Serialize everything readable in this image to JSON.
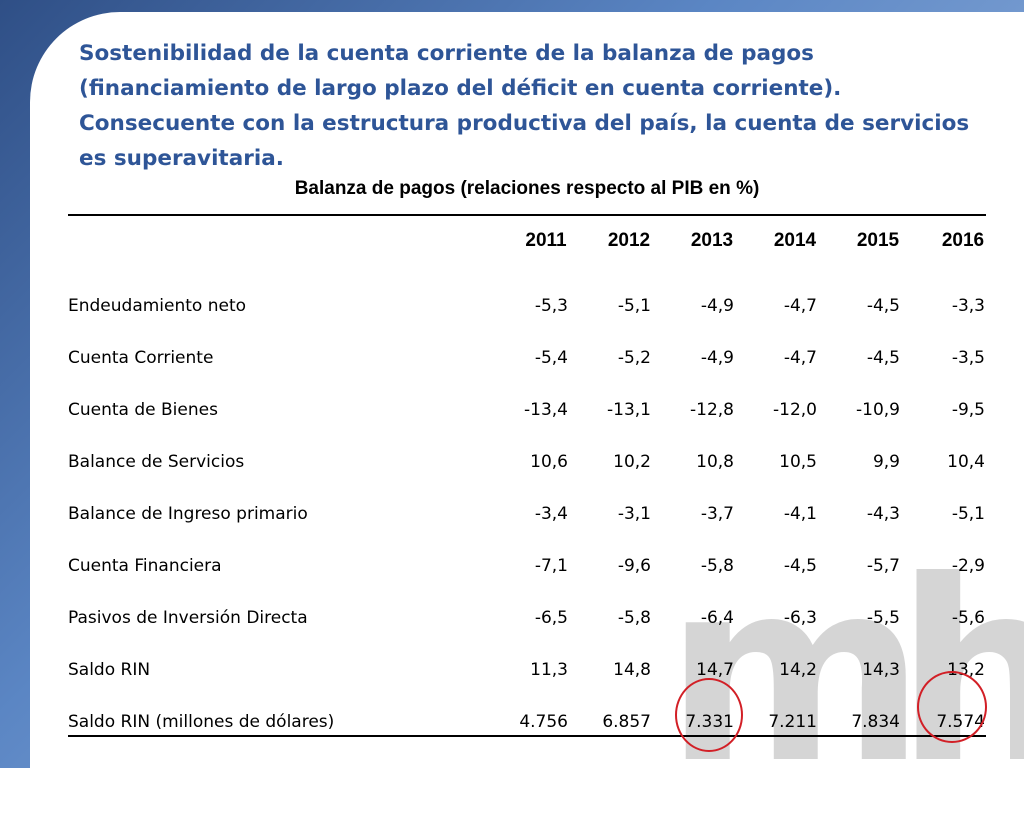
{
  "slide": {
    "title": "Sostenibilidad de la cuenta corriente de la balanza de pagos (financiamiento de largo plazo del déficit en cuenta corriente). Consecuente con la estructura productiva del país, la cuenta de servicios es superavitaria.",
    "watermark_text": "mh",
    "colors": {
      "title": "#2e5597",
      "highlight_circle": "#d21f26"
    }
  },
  "table": {
    "title": "Balanza de pagos (relaciones respecto al PIB en %)",
    "years": [
      "2011",
      "2012",
      "2013",
      "2014",
      "2015",
      "2016"
    ],
    "rows": [
      {
        "label": "Endeudamiento neto",
        "values": [
          "-5,3",
          "-5,1",
          "-4,9",
          "-4,7",
          "-4,5",
          "-3,3"
        ]
      },
      {
        "label": "Cuenta Corriente",
        "values": [
          "-5,4",
          "-5,2",
          "-4,9",
          "-4,7",
          "-4,5",
          "-3,5"
        ]
      },
      {
        "label": "Cuenta de Bienes",
        "values": [
          "-13,4",
          "-13,1",
          "-12,8",
          "-12,0",
          "-10,9",
          "-9,5"
        ]
      },
      {
        "label": "Balance de Servicios",
        "values": [
          "10,6",
          "10,2",
          "10,8",
          "10,5",
          "9,9",
          "10,4"
        ]
      },
      {
        "label": "Balance de Ingreso primario",
        "values": [
          "-3,4",
          "-3,1",
          "-3,7",
          "-4,1",
          "-4,3",
          "-5,1"
        ]
      },
      {
        "label": "Cuenta Financiera",
        "values": [
          "-7,1",
          "-9,6",
          "-5,8",
          "-4,5",
          "-5,7",
          "-2,9"
        ]
      },
      {
        "label": "Pasivos de Inversión Directa",
        "values": [
          "-6,5",
          "-5,8",
          "-6,4",
          "-6,3",
          "-5,5",
          "-5,6"
        ]
      },
      {
        "label": "Saldo RIN",
        "values": [
          "11,3",
          "14,8",
          "14,7",
          "14,2",
          "14,3",
          "13,2"
        ]
      },
      {
        "label": "Saldo RIN (millones de dólares)",
        "values": [
          "4.756",
          "6.857",
          "7.331",
          "7.211",
          "7.834",
          "7.574"
        ]
      }
    ]
  }
}
